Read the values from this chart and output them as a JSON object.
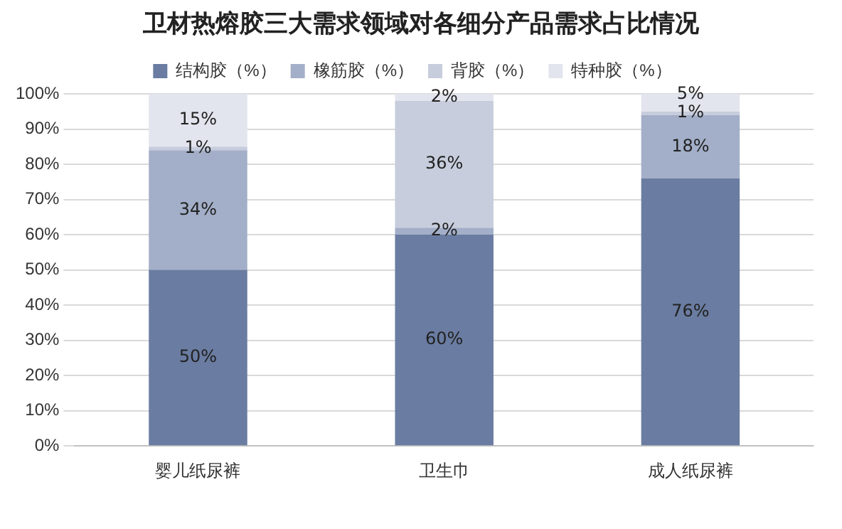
{
  "chart_data": {
    "type": "bar",
    "stacked": true,
    "title": "卫材热熔胶三大需求领域对各细分产品需求占比情况",
    "categories": [
      "婴儿纸尿裤",
      "卫生巾",
      "成人纸尿裤"
    ],
    "series": [
      {
        "name": "结构胶（%）",
        "color": "#6a7ca1",
        "values": [
          50,
          60,
          76
        ],
        "value_labels": [
          "50%",
          "60%",
          "76%"
        ]
      },
      {
        "name": "橡筋胶（%）",
        "color": "#a3afc8",
        "values": [
          34,
          2,
          18
        ],
        "value_labels": [
          "34%",
          "2%",
          "18%"
        ]
      },
      {
        "name": "背胶（%）",
        "color": "#c7cddc",
        "values": [
          1,
          36,
          1
        ],
        "value_labels": [
          "1%",
          "36%",
          "1%"
        ]
      },
      {
        "name": "特种胶（%）",
        "color": "#e3e5ee",
        "values": [
          15,
          2,
          5
        ],
        "value_labels": [
          "15%",
          "2%",
          "5%"
        ]
      }
    ],
    "ylim": [
      0,
      100
    ],
    "yticks": [
      {
        "value": 0,
        "label": "0%"
      },
      {
        "value": 10,
        "label": "10%"
      },
      {
        "value": 20,
        "label": "20%"
      },
      {
        "value": 30,
        "label": "30%"
      },
      {
        "value": 40,
        "label": "40%"
      },
      {
        "value": 50,
        "label": "50%"
      },
      {
        "value": 60,
        "label": "60%"
      },
      {
        "value": 70,
        "label": "70%"
      },
      {
        "value": 80,
        "label": "80%"
      },
      {
        "value": 90,
        "label": "90%"
      },
      {
        "value": 100,
        "label": "100%"
      }
    ],
    "grid": "y",
    "legend": "top"
  }
}
